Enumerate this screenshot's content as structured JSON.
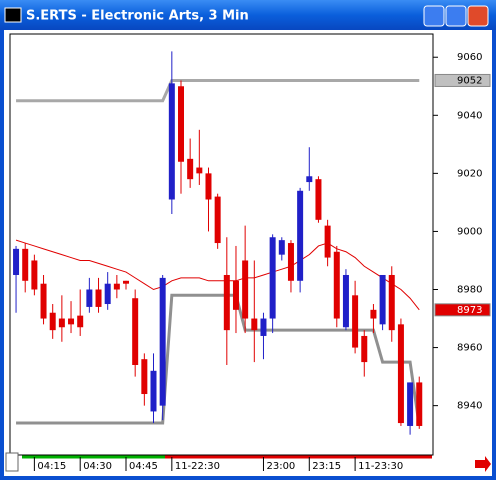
{
  "chart_data": {
    "type": "candlestick",
    "title": "S.ERTS - Electronic Arts, 3 Min",
    "up_color": "#2020c8",
    "down_color": "#e00000",
    "open": [
      8985,
      8994,
      8990,
      8982,
      8972,
      8970,
      8970,
      8971,
      8974,
      8980,
      8975,
      8982,
      8983,
      8977,
      8956,
      8938,
      8940,
      9011,
      9050,
      9025,
      9022,
      9020,
      9012,
      8985,
      8983,
      8990,
      8970,
      8964,
      8970,
      8992,
      8996,
      8983,
      9017,
      9018,
      9002,
      8993,
      8967,
      8978,
      8964,
      8973,
      8968,
      8985,
      8968,
      8933,
      8948
    ],
    "high": [
      8995,
      8996,
      8992,
      8985,
      8975,
      8978,
      8976,
      8980,
      8984,
      8984,
      8986,
      8985,
      8983,
      8980,
      8958,
      8958,
      8985,
      9062,
      9052,
      9032,
      9035,
      9022,
      9013,
      8998,
      8995,
      9002,
      8990,
      8972,
      8999,
      8998,
      8997,
      9015,
      9029,
      9019,
      9004,
      8995,
      8987,
      8983,
      8966,
      8975,
      8985,
      8988,
      8970,
      8948,
      8950
    ],
    "low": [
      8972,
      8979,
      8978,
      8968,
      8963,
      8962,
      8965,
      8964,
      8972,
      8972,
      8973,
      8977,
      8980,
      8950,
      8940,
      8934,
      8935,
      9006,
      9013,
      9015,
      9016,
      9000,
      8994,
      8954,
      8965,
      8965,
      8955,
      8956,
      8965,
      8990,
      8979,
      8979,
      9014,
      9003,
      8988,
      8967,
      8966,
      8958,
      8950,
      8965,
      8966,
      8962,
      8933,
      8930,
      8932
    ],
    "close": [
      8994,
      8983,
      8980,
      8970,
      8966,
      8967,
      8968,
      8967,
      8980,
      8974,
      8982,
      8980,
      8982,
      8954,
      8944,
      8952,
      8984,
      9051,
      9024,
      9018,
      9020,
      9011,
      8996,
      8966,
      8973,
      8970,
      8966,
      8970,
      8998,
      8997,
      8983,
      9014,
      9019,
      9004,
      8991,
      8970,
      8985,
      8960,
      8955,
      8970,
      8985,
      8966,
      8934,
      8948,
      8933
    ],
    "series": [
      {
        "color": "#a8a8a8",
        "values": [
          9045,
          9045,
          9045,
          9045,
          9045,
          9045,
          9045,
          9045,
          9045,
          9045,
          9045,
          9045,
          9045,
          9045,
          9045,
          9045,
          9045,
          9052,
          9052,
          9052,
          9052,
          9052,
          9052,
          9052,
          9052,
          9052,
          9052,
          9052,
          9052,
          9052,
          9052,
          9052,
          9052,
          9052,
          9052,
          9052,
          9052,
          9052,
          9052,
          9052,
          9052,
          9052,
          9052,
          9052,
          9052
        ]
      },
      {
        "color": "#909090",
        "values": [
          8934,
          8934,
          8934,
          8934,
          8934,
          8934,
          8934,
          8934,
          8934,
          8934,
          8934,
          8934,
          8934,
          8934,
          8934,
          8934,
          8934,
          8978,
          8978,
          8978,
          8978,
          8978,
          8978,
          8978,
          8978,
          8966,
          8966,
          8966,
          8966,
          8966,
          8966,
          8966,
          8966,
          8966,
          8966,
          8966,
          8966,
          8966,
          8966,
          8966,
          8955,
          8955,
          8955,
          8955,
          8933
        ]
      },
      {
        "color": "#e00000",
        "values": [
          8997,
          8996,
          8995,
          8994,
          8993,
          8992,
          8991,
          8990,
          8990,
          8989,
          8988,
          8987,
          8986,
          8984,
          8982,
          8980,
          8981,
          8983,
          8984,
          8984,
          8984,
          8983,
          8983,
          8983,
          8983,
          8984,
          8984,
          8985,
          8986,
          8987,
          8988,
          8990,
          8992,
          8995,
          8996,
          8994,
          8993,
          8991,
          8988,
          8986,
          8984,
          8982,
          8980,
          8977,
          8973
        ]
      }
    ],
    "xlim": [
      -0.66,
      45.5
    ],
    "xticks": [
      {
        "value": 2,
        "label": "04:15"
      },
      {
        "value": 7,
        "label": "04:30"
      },
      {
        "value": 12,
        "label": "04:45"
      },
      {
        "value": 17,
        "label": "11-22:30"
      },
      {
        "value": 27,
        "label": "23:00"
      },
      {
        "value": 32,
        "label": "23:15"
      },
      {
        "value": 37,
        "label": "11-23:30"
      }
    ],
    "ylim": [
      8923,
      9068
    ],
    "yticks": [
      8940,
      8960,
      8980,
      9000,
      9020,
      9040,
      9060
    ],
    "price_markers": [
      {
        "value": 9052,
        "color": "#c0c0c0"
      },
      {
        "value": 8973,
        "color": "#e00000"
      }
    ]
  }
}
